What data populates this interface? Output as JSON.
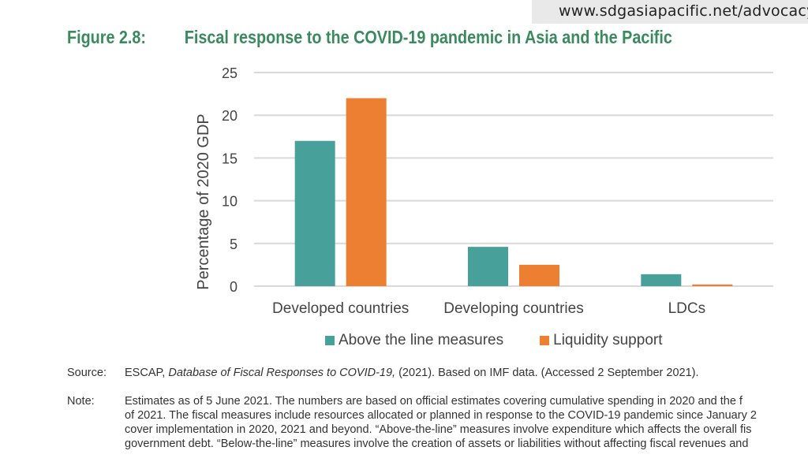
{
  "banner": {
    "url": "www.sdgasiapacific.net/advocacy"
  },
  "figure": {
    "number": "Figure 2.8:",
    "title": "Fiscal response to the COVID-19 pandemic in Asia and the Pacific"
  },
  "chart_data": {
    "type": "bar",
    "title": "Fiscal response to the COVID-19 pandemic in Asia and the Pacific",
    "xlabel": "",
    "ylabel": "Percentage of 2020 GDP",
    "ylim": [
      0,
      25
    ],
    "yticks": [
      "0",
      "5",
      "10",
      "15",
      "20",
      "25"
    ],
    "grid": true,
    "legend_position": "bottom",
    "categories": [
      "Developed countries",
      "Developing countries",
      "LDCs"
    ],
    "series": [
      {
        "name": "Above the line measures",
        "color": "#47a09a",
        "values": [
          17.0,
          4.6,
          1.4
        ]
      },
      {
        "name": "Liquidity support",
        "color": "#ed7f33",
        "values": [
          22.0,
          2.5,
          0.2
        ]
      }
    ]
  },
  "source": {
    "label": "Source:",
    "prefix": "ESCAP, ",
    "italic": "Database of Fiscal Responses to COVID-19,",
    "suffix": " (2021). Based on IMF data. (Accessed 2 September 2021)."
  },
  "note": {
    "label": "Note:",
    "lines": [
      "Estimates as of 5 June 2021. The numbers are based on official estimates covering cumulative spending in 2020 and the f",
      "of 2021. The fiscal measures include resources allocated or planned in response to the COVID-19 pandemic since January 2",
      "cover implementation in 2020, 2021 and beyond. “Above-the-line” measures involve expenditure which affects the overall fis",
      "government debt. “Below-the-line” measures involve the creation of assets or liabilities without affecting fiscal revenues and"
    ]
  }
}
